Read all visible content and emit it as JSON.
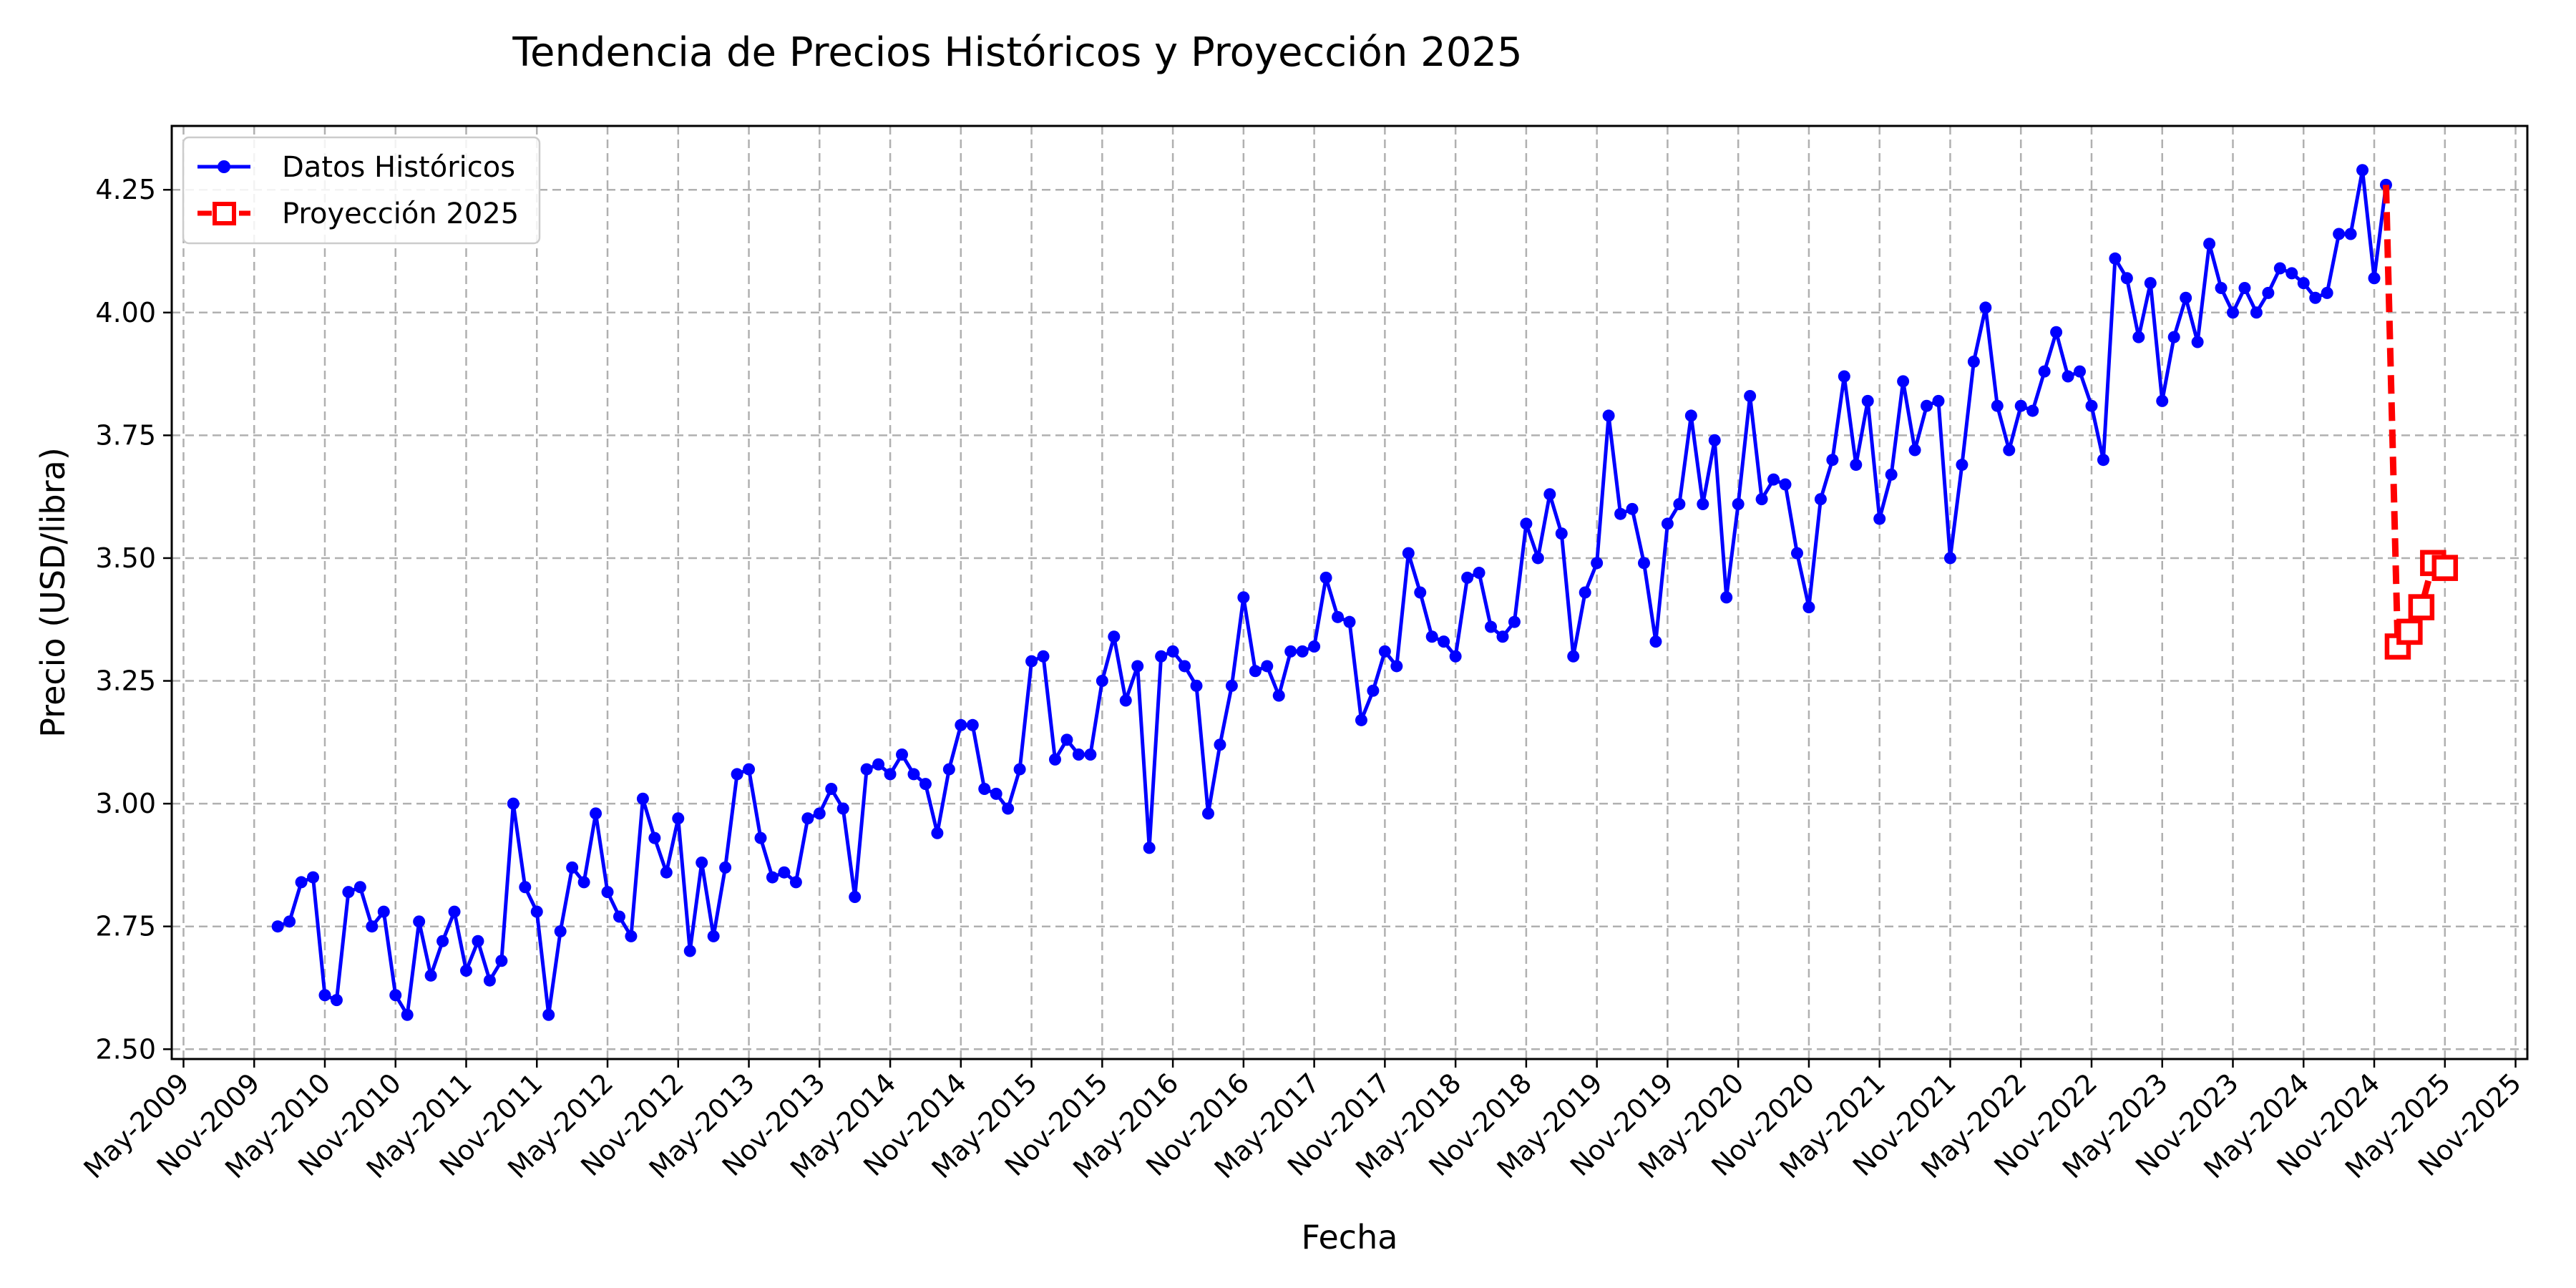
{
  "chart_data": {
    "type": "line",
    "title": "Tendencia de Precios Históricos y Proyección 2025",
    "xlabel": "Fecha",
    "ylabel": "Precio (USD/libra)",
    "xlim": [
      "2009-04",
      "2025-12"
    ],
    "ylim": [
      2.48,
      4.38
    ],
    "yticks": [
      2.5,
      2.75,
      3.0,
      3.25,
      3.5,
      3.75,
      4.0,
      4.25
    ],
    "xticks": [
      "2009-05",
      "2009-11",
      "2010-05",
      "2010-11",
      "2011-05",
      "2011-11",
      "2012-05",
      "2012-11",
      "2013-05",
      "2013-11",
      "2014-05",
      "2014-11",
      "2015-05",
      "2015-11",
      "2016-05",
      "2016-11",
      "2017-05",
      "2017-11",
      "2018-05",
      "2018-11",
      "2019-05",
      "2019-11",
      "2020-05",
      "2020-11",
      "2021-05",
      "2021-11",
      "2022-05",
      "2022-11",
      "2023-05",
      "2023-11",
      "2024-05",
      "2024-11",
      "2025-05",
      "2025-11"
    ],
    "xtick_labels": [
      "May-2009",
      "Nov-2009",
      "May-2010",
      "Nov-2010",
      "May-2011",
      "Nov-2011",
      "May-2012",
      "Nov-2012",
      "May-2013",
      "Nov-2013",
      "May-2014",
      "Nov-2014",
      "May-2015",
      "Nov-2015",
      "May-2016",
      "Nov-2016",
      "May-2017",
      "Nov-2017",
      "May-2018",
      "Nov-2018",
      "May-2019",
      "Nov-2019",
      "May-2020",
      "Nov-2020",
      "May-2021",
      "Nov-2021",
      "May-2022",
      "Nov-2022",
      "May-2023",
      "Nov-2023",
      "May-2024",
      "Nov-2024",
      "May-2025",
      "Nov-2025"
    ],
    "grid": true,
    "legend_position": "top-left",
    "series": [
      {
        "name": "Datos Históricos",
        "color": "#0000ff",
        "marker": "circle",
        "linestyle": "solid",
        "start": "2010-01",
        "values": [
          2.75,
          2.76,
          2.84,
          2.85,
          2.61,
          2.6,
          2.82,
          2.83,
          2.75,
          2.78,
          2.61,
          2.57,
          2.76,
          2.65,
          2.72,
          2.78,
          2.66,
          2.72,
          2.64,
          2.68,
          3.0,
          2.83,
          2.78,
          2.57,
          2.74,
          2.87,
          2.84,
          2.98,
          2.82,
          2.77,
          2.73,
          3.01,
          2.93,
          2.86,
          2.97,
          2.7,
          2.88,
          2.73,
          2.87,
          3.06,
          3.07,
          2.93,
          2.85,
          2.86,
          2.84,
          2.97,
          2.98,
          3.03,
          2.99,
          2.81,
          3.07,
          3.08,
          3.06,
          3.1,
          3.06,
          3.04,
          2.94,
          3.07,
          3.16,
          3.16,
          3.03,
          3.02,
          2.99,
          3.07,
          3.29,
          3.3,
          3.09,
          3.13,
          3.1,
          3.1,
          3.25,
          3.34,
          3.21,
          3.28,
          2.91,
          3.3,
          3.31,
          3.28,
          3.24,
          2.98,
          3.12,
          3.24,
          3.42,
          3.27,
          3.28,
          3.22,
          3.31,
          3.31,
          3.32,
          3.46,
          3.38,
          3.37,
          3.17,
          3.23,
          3.31,
          3.28,
          3.51,
          3.43,
          3.34,
          3.33,
          3.3,
          3.46,
          3.47,
          3.36,
          3.34,
          3.37,
          3.57,
          3.5,
          3.63,
          3.55,
          3.3,
          3.43,
          3.49,
          3.79,
          3.59,
          3.6,
          3.49,
          3.33,
          3.57,
          3.61,
          3.79,
          3.61,
          3.74,
          3.42,
          3.61,
          3.83,
          3.62,
          3.66,
          3.65,
          3.51,
          3.4,
          3.62,
          3.7,
          3.87,
          3.69,
          3.82,
          3.58,
          3.67,
          3.86,
          3.72,
          3.81,
          3.82,
          3.5,
          3.69,
          3.9,
          4.01,
          3.81,
          3.72,
          3.81,
          3.8,
          3.88,
          3.96,
          3.87,
          3.88,
          3.81,
          3.7,
          4.11,
          4.07,
          3.95,
          4.06,
          3.82,
          3.95,
          4.03,
          3.94,
          4.14,
          4.05,
          4.0,
          4.05,
          4.0,
          4.04,
          4.09,
          4.08,
          4.06,
          4.03,
          4.04,
          4.16,
          4.16,
          4.29,
          4.07,
          4.26
        ]
      },
      {
        "name": "Proyección 2025",
        "color": "#ff0000",
        "marker": "square",
        "linestyle": "dashed",
        "start": "2025-01",
        "values": [
          3.32,
          3.35,
          3.4,
          3.49,
          3.48
        ]
      }
    ]
  }
}
